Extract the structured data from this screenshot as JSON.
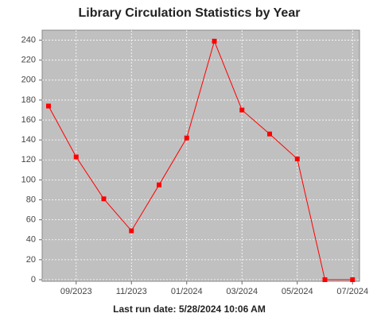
{
  "chart_data": {
    "type": "line",
    "title": "Library Circulation Statistics by Year",
    "footer": "Last run date: 5/28/2024 10:06 AM",
    "categories": [
      null,
      "09/2023",
      null,
      "11/2023",
      null,
      "01/2024",
      null,
      "03/2024",
      null,
      "05/2024",
      null,
      "07/2024"
    ],
    "values": [
      174,
      123,
      81,
      49,
      95,
      142,
      239,
      170,
      146,
      121,
      0,
      0
    ],
    "color": "#ff0000",
    "ylim": [
      0,
      250
    ],
    "yticks": [
      0,
      20,
      40,
      60,
      80,
      100,
      120,
      140,
      160,
      180,
      200,
      220,
      240
    ],
    "grid": true
  }
}
